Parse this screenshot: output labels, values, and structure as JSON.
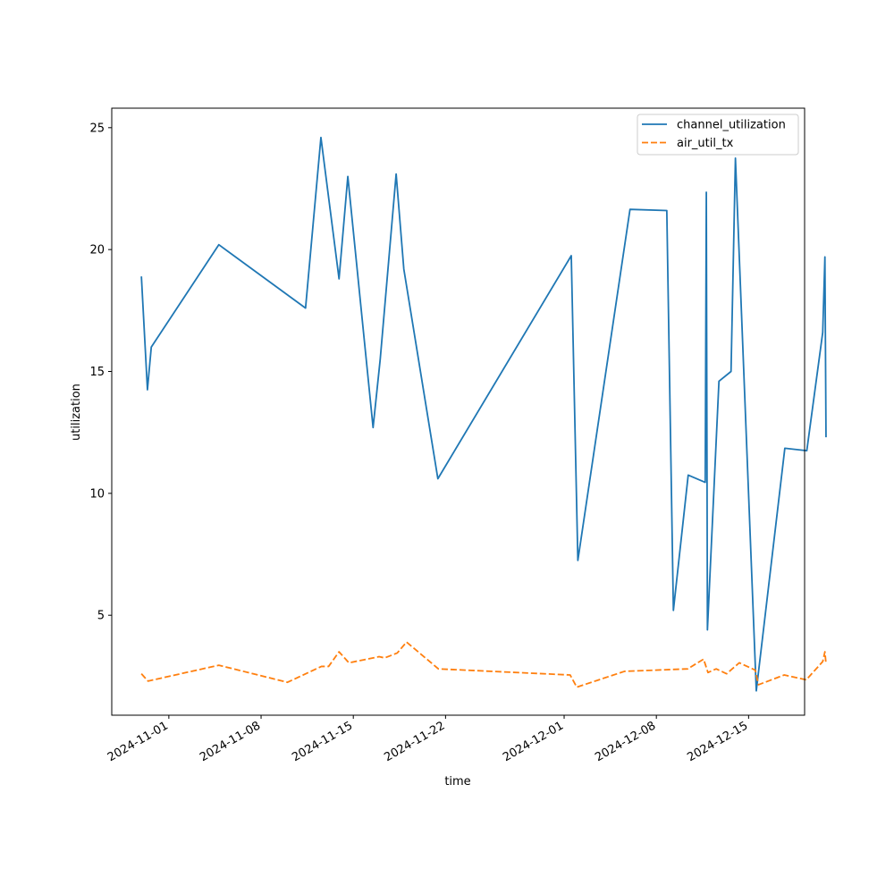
{
  "chart_data": {
    "type": "line",
    "title": "",
    "xlabel": "time",
    "ylabel": "utilization",
    "x_ticks": [
      "2024-11-01",
      "2024-11-08",
      "2024-11-15",
      "2024-11-22",
      "2024-12-01",
      "2024-12-08",
      "2024-12-15"
    ],
    "y_ticks": [
      5,
      10,
      15,
      20,
      25
    ],
    "xlim": [
      "2024-10-27T16:00",
      "2024-12-19T06:00"
    ],
    "ylim": [
      0.9,
      25.8
    ],
    "legend_position": "top-right",
    "grid": false,
    "series": [
      {
        "name": "channel_utilization",
        "color": "#1f77b4",
        "style": "solid",
        "points": [
          [
            "2024-10-29T22:00",
            18.9
          ],
          [
            "2024-10-30T09:00",
            14.25
          ],
          [
            "2024-10-30T16:00",
            16.0
          ],
          [
            "2024-11-04T19:00",
            20.2
          ],
          [
            "2024-11-11T09:00",
            17.6
          ],
          [
            "2024-11-12T13:00",
            24.6
          ],
          [
            "2024-11-13T22:00",
            18.8
          ],
          [
            "2024-11-14T14:00",
            23.0
          ],
          [
            "2024-11-16T12:00",
            12.7
          ],
          [
            "2024-11-17T01:00",
            15.5
          ],
          [
            "2024-11-18T06:00",
            23.1
          ],
          [
            "2024-11-18T20:00",
            19.2
          ],
          [
            "2024-11-21T10:00",
            10.6
          ],
          [
            "2024-12-01T13:00",
            19.75
          ],
          [
            "2024-12-02T01:00",
            7.25
          ],
          [
            "2024-12-06T00:00",
            21.65
          ],
          [
            "2024-12-08T19:00",
            21.6
          ],
          [
            "2024-12-09T07:00",
            5.2
          ],
          [
            "2024-12-10T10:00",
            10.75
          ],
          [
            "2024-12-11T17:00",
            10.45
          ],
          [
            "2024-12-11T19:00",
            22.35
          ],
          [
            "2024-12-11T21:00",
            4.4
          ],
          [
            "2024-12-12T18:00",
            14.6
          ],
          [
            "2024-12-13T16:00",
            15.0
          ],
          [
            "2024-12-14T00:00",
            23.75
          ],
          [
            "2024-12-15T14:00",
            1.9
          ],
          [
            "2024-12-17T18:00",
            11.85
          ],
          [
            "2024-12-19T10:00",
            11.75
          ],
          [
            "2024-12-20T15:00",
            16.6
          ],
          [
            "2024-12-20T19:00",
            19.7
          ],
          [
            "2024-12-20T21:00",
            12.3
          ]
        ]
      },
      {
        "name": "air_util_tx",
        "color": "#ff7f0e",
        "style": "dashed",
        "points": [
          [
            "2024-10-29T22:00",
            2.6
          ],
          [
            "2024-10-30T10:00",
            2.3
          ],
          [
            "2024-11-04T19:00",
            2.95
          ],
          [
            "2024-11-10T00:00",
            2.25
          ],
          [
            "2024-11-12T14:00",
            2.9
          ],
          [
            "2024-11-13T03:00",
            2.9
          ],
          [
            "2024-11-13T22:00",
            3.5
          ],
          [
            "2024-11-14T16:00",
            3.05
          ],
          [
            "2024-11-16T23:00",
            3.3
          ],
          [
            "2024-11-17T09:00",
            3.25
          ],
          [
            "2024-11-18T08:00",
            3.45
          ],
          [
            "2024-11-19T01:00",
            3.9
          ],
          [
            "2024-11-21T11:00",
            2.8
          ],
          [
            "2024-12-01T11:00",
            2.55
          ],
          [
            "2024-12-01T23:00",
            2.05
          ],
          [
            "2024-12-05T14:00",
            2.7
          ],
          [
            "2024-12-10T09:00",
            2.8
          ],
          [
            "2024-12-11T14:00",
            3.2
          ],
          [
            "2024-12-11T22:00",
            2.65
          ],
          [
            "2024-12-12T13:00",
            2.8
          ],
          [
            "2024-12-13T08:00",
            2.6
          ],
          [
            "2024-12-14T07:00",
            3.05
          ],
          [
            "2024-12-15T12:00",
            2.75
          ],
          [
            "2024-12-15T18:00",
            2.15
          ],
          [
            "2024-12-17T17:00",
            2.55
          ],
          [
            "2024-12-19T09:00",
            2.35
          ],
          [
            "2024-12-20T15:00",
            3.1
          ],
          [
            "2024-12-20T19:00",
            3.5
          ],
          [
            "2024-12-20T21:00",
            3.0
          ]
        ]
      }
    ]
  }
}
